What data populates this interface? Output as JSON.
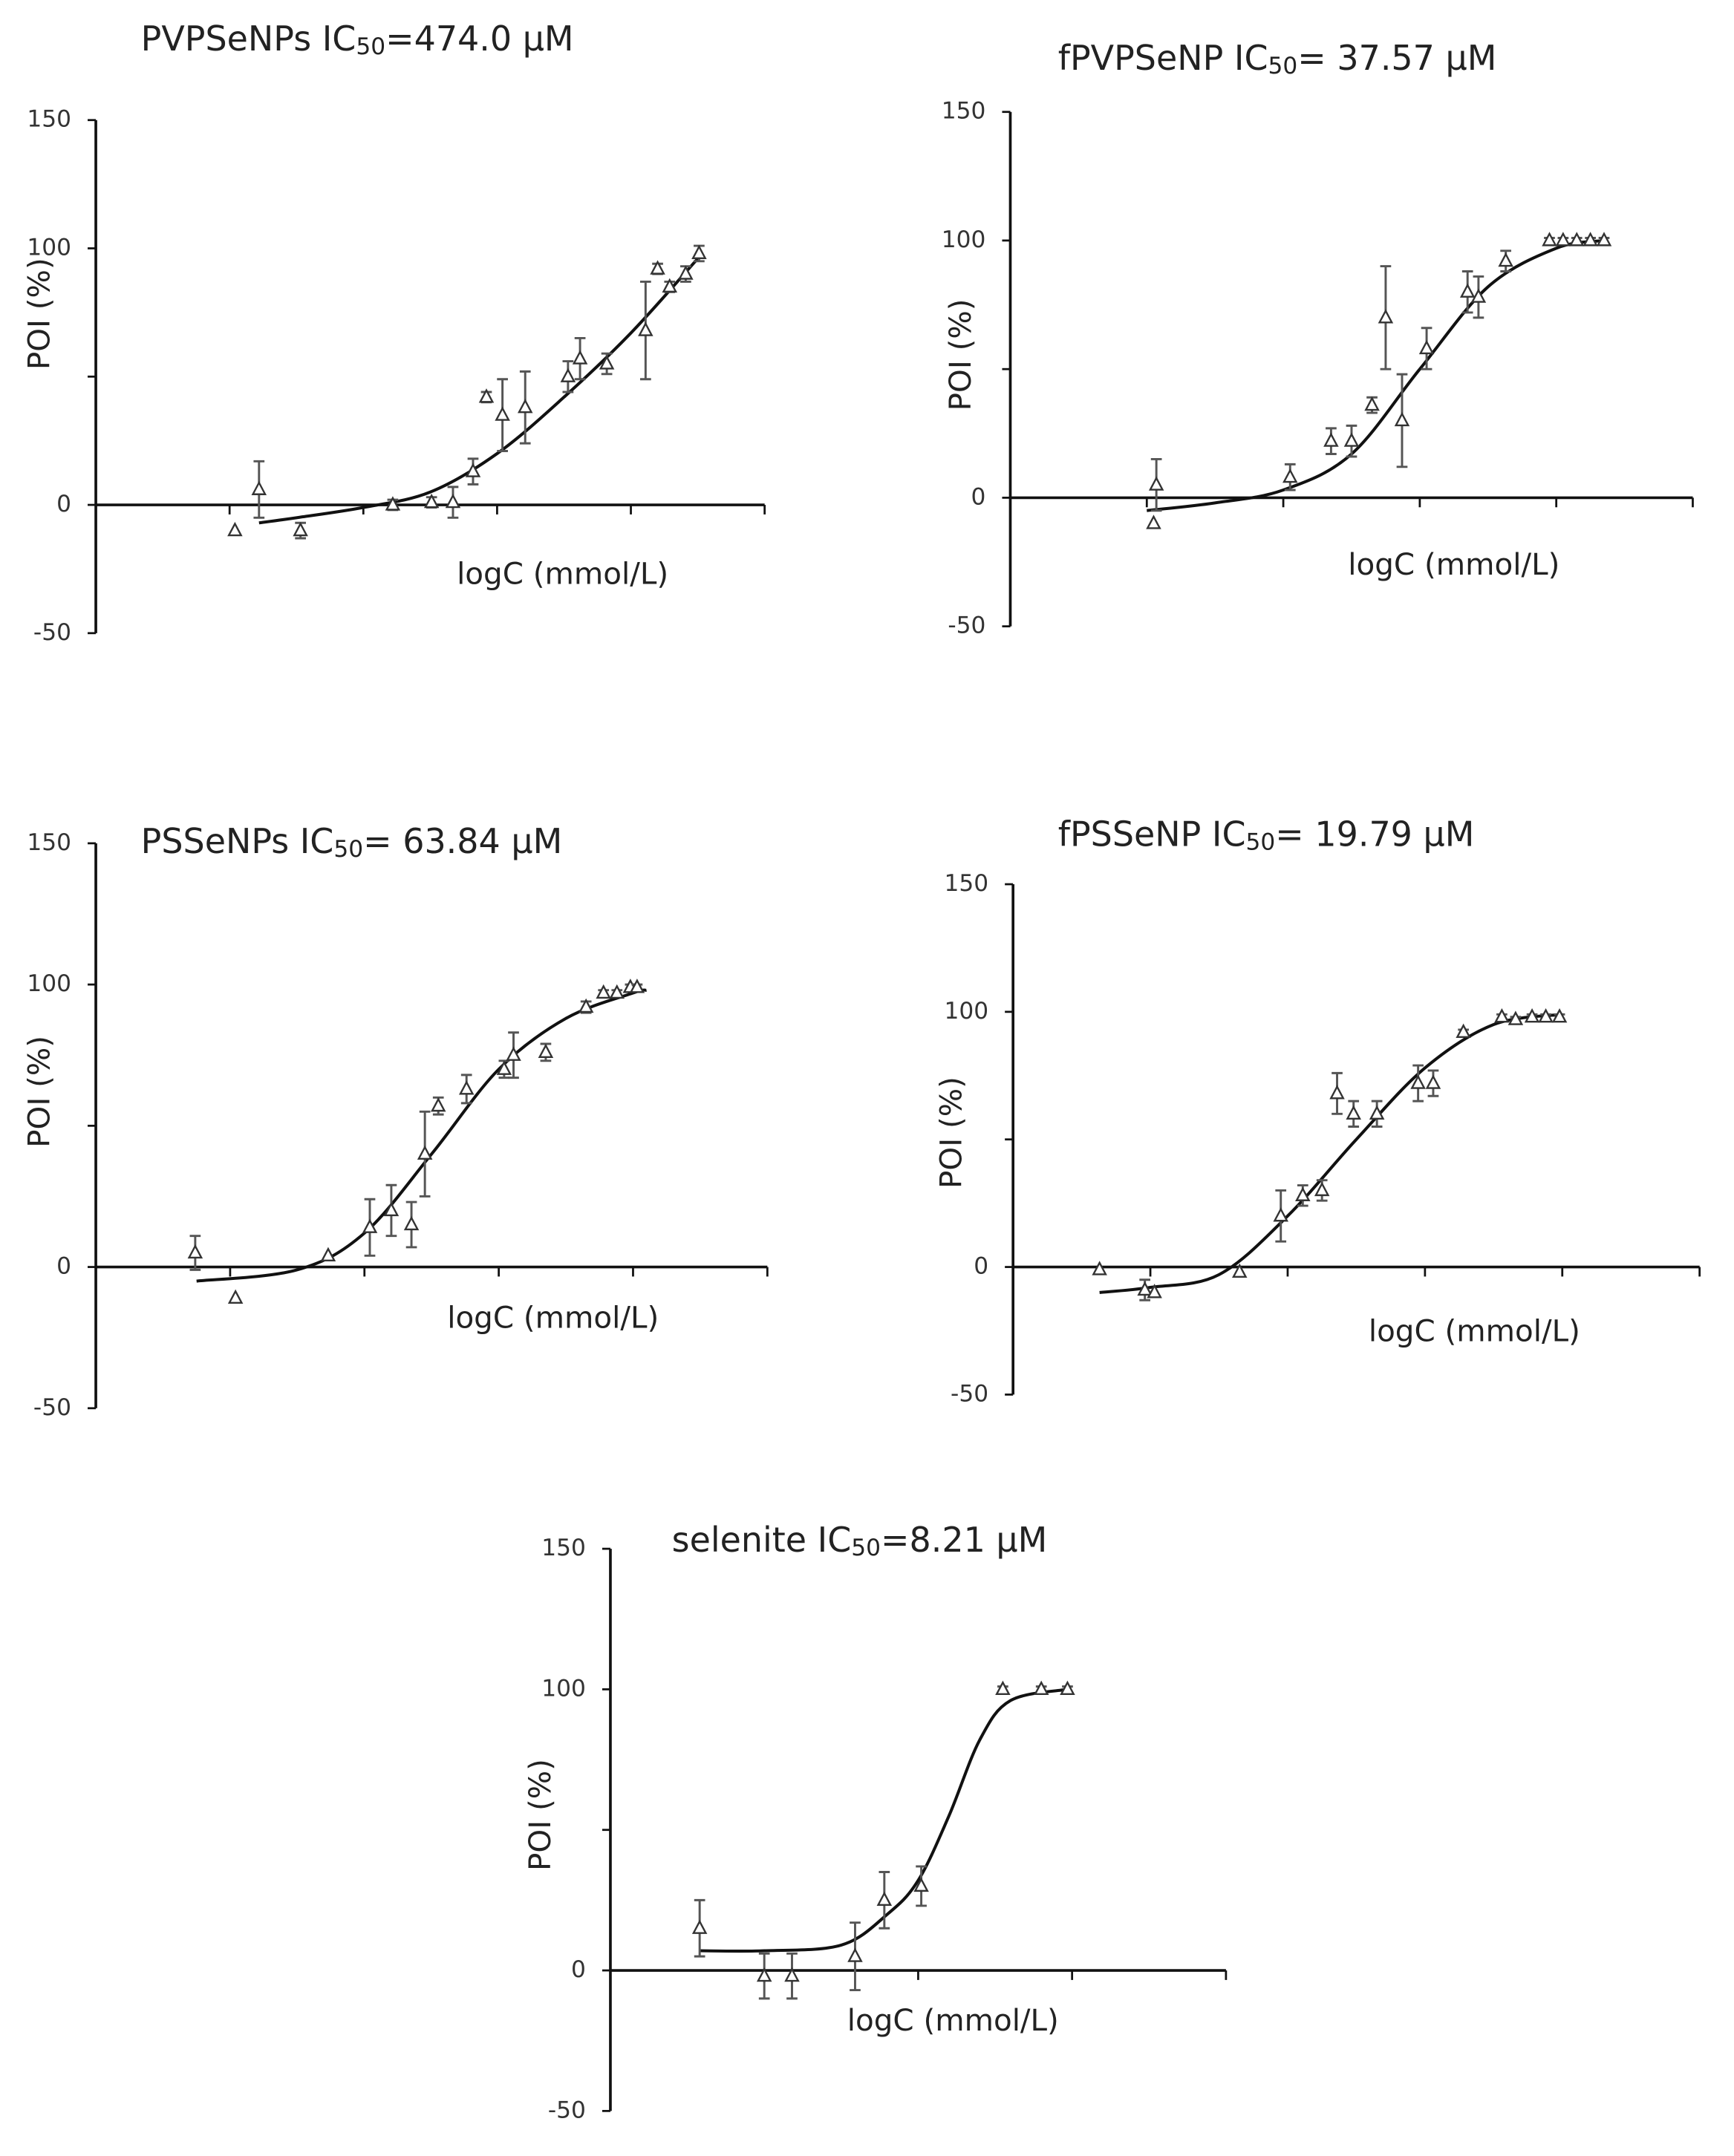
{
  "chart_data": [
    {
      "type": "scatter",
      "title": [
        "PVPSeNPs IC",
        "50",
        "=474.0 μM"
      ],
      "xlabel": "logC (mmol/L)",
      "ylabel": "POI (%)",
      "color": "#333333",
      "xlim": [
        0,
        5
      ],
      "xticks": [
        {
          "value": 1,
          "label": null
        },
        {
          "value": 2,
          "label": null
        },
        {
          "value": 3,
          "label": null
        },
        {
          "value": 4,
          "label": null
        },
        {
          "value": 5,
          "label": null
        }
      ],
      "ylim": [
        -50,
        150
      ],
      "yticks": [
        -50,
        0,
        {
          "value": 50,
          "label": null
        },
        100,
        150
      ],
      "points": {
        "x": [
          1.04,
          1.22,
          1.53,
          2.22,
          2.51,
          2.67,
          2.82,
          2.92,
          3.04,
          3.21,
          3.53,
          3.62,
          3.82,
          4.11,
          4.2,
          4.29,
          4.41,
          4.51
        ],
        "values": [
          -10,
          6,
          -10,
          0,
          1,
          1,
          13,
          42,
          35,
          38,
          50,
          57,
          55,
          68,
          92,
          85,
          90,
          98
        ],
        "errors": [
          null,
          11,
          3,
          2,
          2,
          6,
          5,
          2,
          14,
          14,
          6,
          8,
          4,
          19,
          2,
          2,
          3,
          3
        ]
      },
      "fit": {
        "x": [
          1.22,
          1.5,
          2.0,
          2.5,
          3.0,
          3.5,
          4.0,
          4.5
        ],
        "values": [
          -7,
          -5,
          -1,
          5,
          20,
          42,
          67,
          96
        ]
      }
    },
    {
      "type": "scatter",
      "title": [
        "fPVPSeNP IC",
        "50",
        "= 37.57 μM"
      ],
      "xlabel": "logC (mmol/L)",
      "ylabel": "POI (%)",
      "color": "#333333",
      "xlim": [
        0,
        5
      ],
      "xticks": [
        {
          "value": 1,
          "label": null
        },
        {
          "value": 2,
          "label": null
        },
        {
          "value": 3,
          "label": null
        },
        {
          "value": 4,
          "label": null
        },
        {
          "value": 5,
          "label": null
        }
      ],
      "ylim": [
        -50,
        150
      ],
      "yticks": [
        -50,
        0,
        {
          "value": 50,
          "label": null
        },
        100,
        150
      ],
      "points": {
        "x": [
          1.05,
          1.07,
          2.05,
          2.35,
          2.5,
          2.65,
          2.75,
          2.87,
          3.05,
          3.35,
          3.43,
          3.63,
          3.95,
          4.05,
          4.15,
          4.25,
          4.35
        ],
        "values": [
          -10,
          5,
          8,
          22,
          22,
          36,
          70,
          30,
          58,
          80,
          78,
          92,
          100,
          100,
          100,
          100,
          100
        ],
        "errors": [
          null,
          10,
          5,
          5,
          6,
          3,
          20,
          18,
          8,
          8,
          8,
          4,
          1,
          1,
          1,
          1,
          1
        ]
      },
      "fit": {
        "x": [
          1.0,
          1.5,
          2.0,
          2.5,
          3.0,
          3.5,
          4.0,
          4.35
        ],
        "values": [
          -5,
          -2,
          3,
          17,
          50,
          82,
          97,
          100
        ]
      }
    },
    {
      "type": "scatter",
      "title": [
        "PSSeNPs IC",
        "50",
        "= 63.84 μM"
      ],
      "xlabel": "logC (mmol/L)",
      "ylabel": "POI (%)",
      "color": "#333333",
      "xlim": [
        0,
        5
      ],
      "xticks": [
        {
          "value": 1,
          "label": null
        },
        {
          "value": 2,
          "label": null
        },
        {
          "value": 3,
          "label": null
        },
        {
          "value": 4,
          "label": null
        },
        {
          "value": 5,
          "label": null
        }
      ],
      "ylim": [
        -50,
        150
      ],
      "yticks": [
        -50,
        0,
        {
          "value": 50,
          "label": null
        },
        100,
        150
      ],
      "points": {
        "x": [
          0.74,
          1.04,
          1.73,
          2.04,
          2.2,
          2.35,
          2.45,
          2.55,
          2.76,
          3.04,
          3.11,
          3.35,
          3.65,
          3.78,
          3.88,
          3.98,
          4.03
        ],
        "values": [
          5,
          -11,
          4,
          14,
          20,
          15,
          40,
          57,
          63,
          70,
          75,
          76,
          92,
          97,
          97,
          99,
          99
        ],
        "errors": [
          6,
          null,
          null,
          10,
          9,
          8,
          15,
          3,
          5,
          3,
          8,
          3,
          2,
          1,
          1,
          1,
          1
        ]
      },
      "fit": {
        "x": [
          0.75,
          1.5,
          2.0,
          2.5,
          3.0,
          3.5,
          4.0,
          4.1
        ],
        "values": [
          -5,
          -1,
          12,
          40,
          70,
          88,
          97,
          98
        ]
      }
    },
    {
      "type": "scatter",
      "title": [
        "fPSSeNP IC",
        "50",
        "= 19.79 μM"
      ],
      "xlabel": "logC (mmol/L)",
      "ylabel": "POI (%)",
      "color": "#333333",
      "xlim": [
        0,
        5
      ],
      "xticks": [
        {
          "value": 1,
          "label": null
        },
        {
          "value": 2,
          "label": null
        },
        {
          "value": 3,
          "label": null
        },
        {
          "value": 4,
          "label": null
        },
        {
          "value": 5,
          "label": null
        }
      ],
      "ylim": [
        -50,
        150
      ],
      "yticks": [
        -50,
        0,
        {
          "value": 50,
          "label": null
        },
        100,
        150
      ],
      "points": {
        "x": [
          0.63,
          0.96,
          1.03,
          1.65,
          1.95,
          2.11,
          2.25,
          2.36,
          2.48,
          2.65,
          2.95,
          3.06,
          3.28,
          3.56,
          3.66,
          3.78,
          3.88,
          3.98
        ],
        "values": [
          -1,
          -9,
          -10,
          -2,
          20,
          28,
          30,
          68,
          60,
          60,
          72,
          72,
          92,
          98,
          97,
          98,
          98,
          98
        ],
        "errors": [
          null,
          4,
          null,
          null,
          10,
          4,
          4,
          8,
          5,
          5,
          7,
          5,
          1,
          1,
          1,
          1,
          1,
          1
        ]
      },
      "fit": {
        "x": [
          0.63,
          1.0,
          1.5,
          2.0,
          2.5,
          3.0,
          3.5,
          4.0
        ],
        "values": [
          -10,
          -8,
          -3,
          20,
          50,
          78,
          95,
          99
        ]
      }
    },
    {
      "type": "scatter",
      "title": [
        "selenite IC",
        "50",
        "=8.21  μM"
      ],
      "xlabel": "logC (mmol/L)",
      "ylabel": "POI (%)",
      "color": "#333333",
      "xlim": [
        0,
        4
      ],
      "xticks": [
        {
          "value": 1,
          "label": null
        },
        {
          "value": 2,
          "label": null
        },
        {
          "value": 3,
          "label": null
        },
        {
          "value": 4,
          "label": null
        }
      ],
      "ylim": [
        -50,
        150
      ],
      "yticks": [
        -50,
        0,
        {
          "value": 50,
          "label": null
        },
        100,
        150
      ],
      "points": {
        "x": [
          0.58,
          1.0,
          1.18,
          1.59,
          1.78,
          2.02,
          2.55,
          2.8,
          2.97
        ],
        "values": [
          15,
          -2,
          -2,
          5,
          25,
          30,
          100,
          100,
          100
        ],
        "errors": [
          10,
          8,
          8,
          12,
          10,
          7,
          1,
          1,
          1
        ]
      },
      "fit": {
        "x": [
          0.58,
          1.0,
          1.5,
          1.8,
          2.0,
          2.2,
          2.4,
          2.6,
          2.97
        ],
        "values": [
          7,
          7,
          9,
          20,
          32,
          55,
          82,
          96,
          100
        ]
      }
    }
  ]
}
